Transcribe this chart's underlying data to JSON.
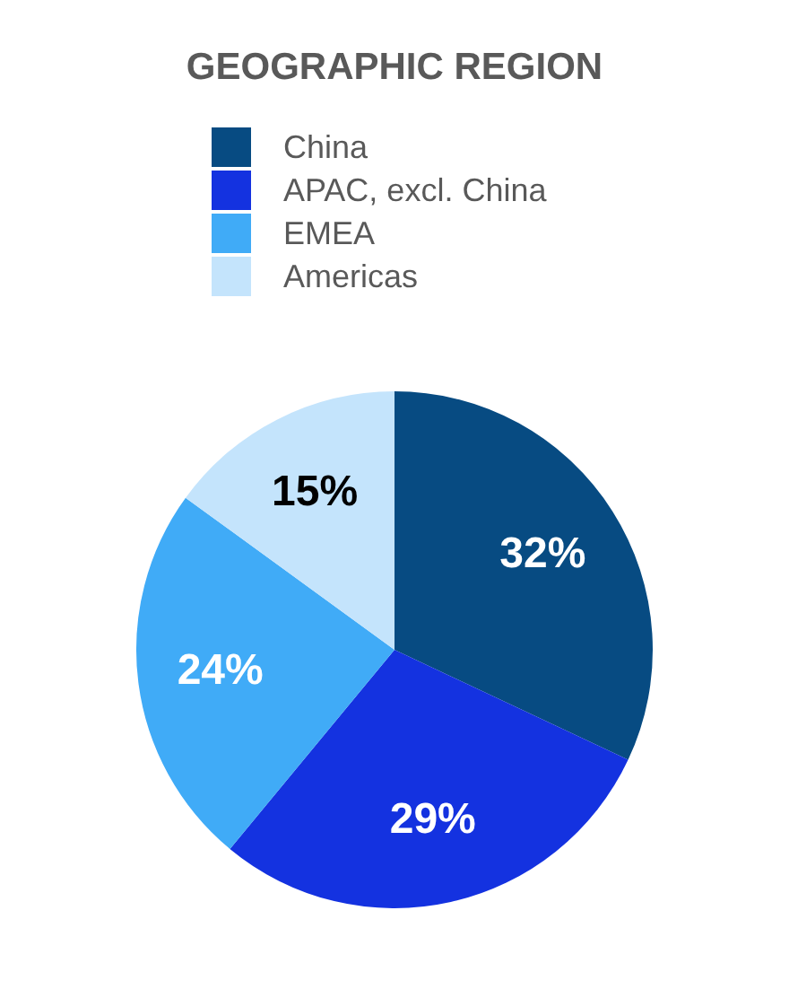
{
  "chart_data": {
    "type": "pie",
    "title": "GEOGRAPHIC REGION",
    "categories": [
      "China",
      "APAC, excl. China",
      "EMEA",
      "Americas"
    ],
    "values": [
      32,
      29,
      24,
      15
    ],
    "colors": [
      "#074b82",
      "#1432e0",
      "#40abf7",
      "#c4e4fc"
    ],
    "value_labels": [
      "32%",
      "29%",
      "24%",
      "15%"
    ],
    "legend": "top"
  }
}
